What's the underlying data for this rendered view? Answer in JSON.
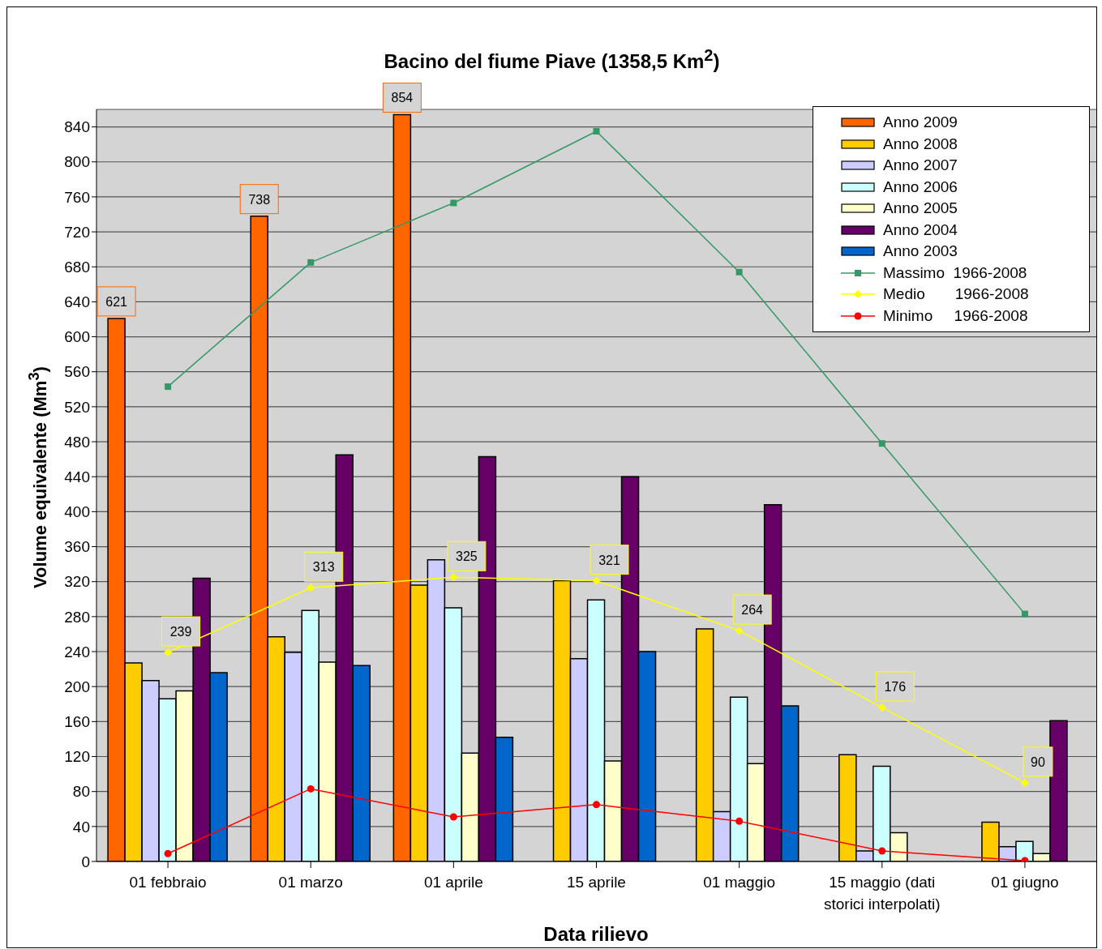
{
  "chart_data": {
    "type": "bar",
    "title": "Bacino del fiume Piave (1358,5 Km$^{2}$)",
    "xlabel": "Data rilievo",
    "ylabel": "Volume equivalente (Mm$^{3}$)",
    "categories": [
      "01 febbraio",
      "01 marzo",
      "01 aprile",
      "15 aprile",
      "01 maggio",
      "15 maggio (dati storici interpolati)",
      "01 giugno"
    ],
    "series": [
      {
        "name": "Anno 2009",
        "color": "#ff6600",
        "values": [
          621,
          738,
          854,
          null,
          null,
          null,
          null
        ],
        "value_labels": [
          "621",
          "738",
          "854",
          null,
          null,
          null,
          null
        ]
      },
      {
        "name": "Anno 2008",
        "color": "#ffcc00",
        "values": [
          227,
          257,
          316,
          321,
          266,
          122,
          45
        ]
      },
      {
        "name": "Anno 2007",
        "color": "#ccccff",
        "values": [
          207,
          239,
          345,
          232,
          57,
          12,
          17
        ]
      },
      {
        "name": "Anno 2006",
        "color": "#ccffff",
        "values": [
          186,
          287,
          290,
          299,
          188,
          109,
          23
        ]
      },
      {
        "name": "Anno 2005",
        "color": "#ffffcc",
        "values": [
          195,
          228,
          124,
          115,
          112,
          33,
          9
        ]
      },
      {
        "name": "Anno 2004",
        "color": "#660066",
        "values": [
          324,
          465,
          463,
          440,
          408,
          null,
          161
        ]
      },
      {
        "name": "Anno 2003",
        "color": "#0066cc",
        "values": [
          216,
          224,
          142,
          240,
          178,
          null,
          null
        ]
      },
      {
        "name": "Massimo  1966-2008",
        "type": "line",
        "marker": "square",
        "color": "#339966",
        "values": [
          543,
          685,
          753,
          835,
          674,
          478,
          283
        ]
      },
      {
        "name": "Medio       1966-2008",
        "type": "line",
        "marker": "diamond",
        "color": "#ffff00",
        "values": [
          239,
          313,
          325,
          321,
          264,
          176,
          90
        ],
        "value_labels": [
          "239",
          "313",
          "325",
          "321",
          "264",
          "176",
          "90"
        ]
      },
      {
        "name": "Minimo     1966-2008",
        "type": "line",
        "marker": "circle",
        "color": "#ff0000",
        "values": [
          9,
          83,
          51,
          65,
          46,
          12,
          1
        ]
      }
    ],
    "ylim": [
      0,
      860
    ],
    "yticks": [
      0,
      40,
      80,
      120,
      160,
      200,
      240,
      280,
      320,
      360,
      400,
      440,
      480,
      520,
      560,
      600,
      640,
      680,
      720,
      760,
      800,
      840
    ],
    "grid": "y",
    "legend": "top right",
    "line_style": "solid"
  }
}
